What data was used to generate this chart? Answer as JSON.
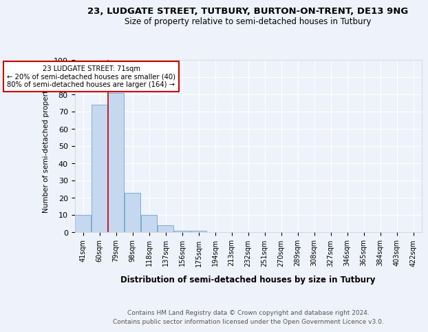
{
  "title1": "23, LUDGATE STREET, TUTBURY, BURTON-ON-TRENT, DE13 9NG",
  "title2": "Size of property relative to semi-detached houses in Tutbury",
  "xlabel": "Distribution of semi-detached houses by size in Tutbury",
  "ylabel": "Number of semi-detached properties",
  "categories": [
    "41sqm",
    "60sqm",
    "79sqm",
    "98sqm",
    "118sqm",
    "137sqm",
    "156sqm",
    "175sqm",
    "194sqm",
    "213sqm",
    "232sqm",
    "251sqm",
    "270sqm",
    "289sqm",
    "308sqm",
    "327sqm",
    "346sqm",
    "365sqm",
    "384sqm",
    "403sqm",
    "422sqm"
  ],
  "values": [
    10,
    74,
    81,
    23,
    10,
    4,
    1,
    1,
    0,
    0,
    0,
    0,
    0,
    0,
    0,
    0,
    0,
    0,
    0,
    0,
    0
  ],
  "bar_color": "#c5d8ef",
  "bar_edge_color": "#7aadd4",
  "property_line_x": 1.5,
  "annotation_text1": "23 LUDGATE STREET: 71sqm",
  "annotation_text2": "← 20% of semi-detached houses are smaller (40)",
  "annotation_text3": "80% of semi-detached houses are larger (164) →",
  "footer1": "Contains HM Land Registry data © Crown copyright and database right 2024.",
  "footer2": "Contains public sector information licensed under the Open Government Licence v3.0.",
  "ylim": [
    0,
    100
  ],
  "annotation_box_color": "#ffffff",
  "annotation_box_edge": "#cc0000",
  "vline_color": "#cc0000",
  "background_color": "#eef2fa",
  "grid_color": "#ffffff"
}
